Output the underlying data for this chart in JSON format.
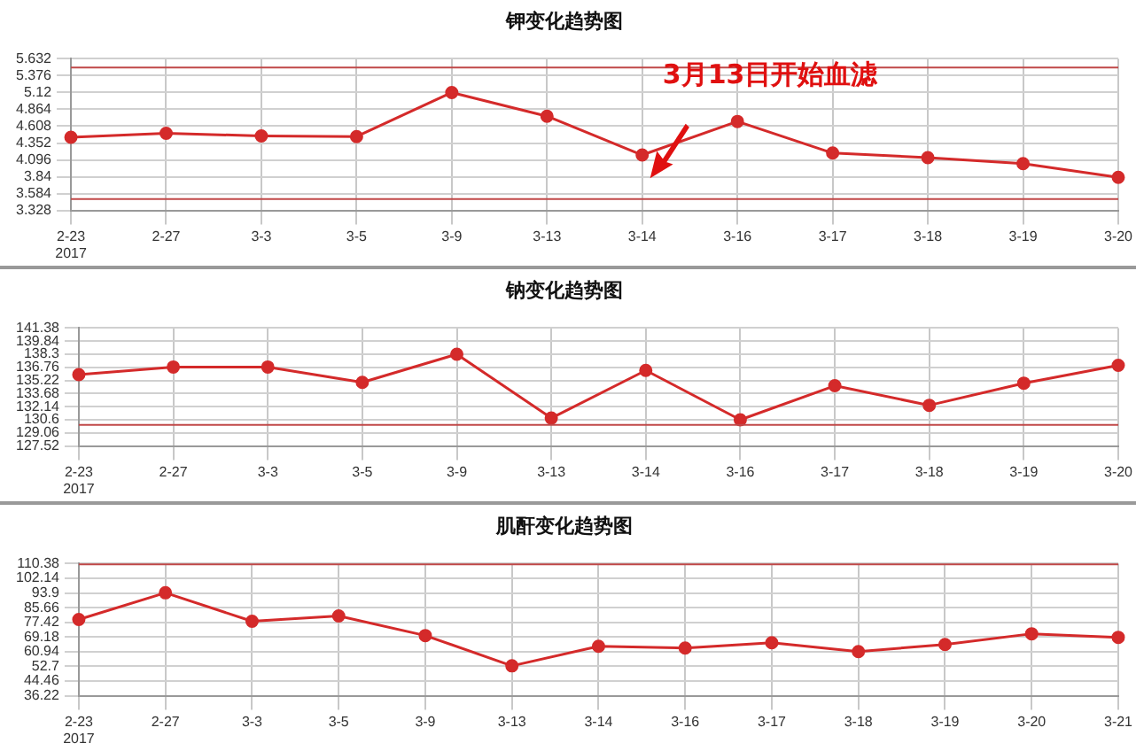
{
  "chart_data": [
    {
      "type": "line",
      "title": "钾变化趋势图",
      "categories": [
        "2-23\n2017",
        "2-27",
        "3-3",
        "3-5",
        "3-9",
        "3-13",
        "3-14",
        "3-16",
        "3-17",
        "3-18",
        "3-19",
        "3-20"
      ],
      "series": [
        {
          "color": "#d42a2a",
          "values": [
            4.44,
            4.5,
            4.46,
            4.45,
            5.12,
            4.76,
            4.17,
            4.68,
            4.2,
            4.13,
            4.04,
            3.83
          ]
        }
      ],
      "ylim": [
        3.328,
        5.632
      ],
      "yticks": [
        3.328,
        3.584,
        3.84,
        4.096,
        4.352,
        4.608,
        4.864,
        5.12,
        5.376,
        5.632
      ],
      "ref_lines": [
        {
          "axis": "y",
          "value": 5.5,
          "color": "#c04848"
        },
        {
          "axis": "y",
          "value": 3.5,
          "color": "#c04848"
        }
      ],
      "annotations": [
        "3月13日开始血滤"
      ],
      "grid": true,
      "legend": false,
      "marker": "circle",
      "line_style": "solid"
    },
    {
      "type": "line",
      "title": "钠变化趋势图",
      "categories": [
        "2-23\n2017",
        "2-27",
        "3-3",
        "3-5",
        "3-9",
        "3-13",
        "3-14",
        "3-16",
        "3-17",
        "3-18",
        "3-19",
        "3-20"
      ],
      "series": [
        {
          "color": "#d42a2a",
          "values": [
            135.9,
            136.8,
            136.8,
            135.0,
            138.3,
            130.8,
            136.4,
            130.6,
            134.6,
            132.3,
            134.9,
            137.0
          ]
        }
      ],
      "ylim": [
        127.52,
        141.38
      ],
      "yticks": [
        127.52,
        129.06,
        130.6,
        132.14,
        133.68,
        135.22,
        136.76,
        138.3,
        139.84,
        141.38
      ],
      "ref_lines": [
        {
          "axis": "y",
          "value": 130,
          "color": "#c04848"
        }
      ],
      "grid": true,
      "legend": false,
      "marker": "circle",
      "line_style": "solid"
    },
    {
      "type": "line",
      "title": "肌酐变化趋势图",
      "categories": [
        "2-23\n2017",
        "2-27",
        "3-3",
        "3-5",
        "3-9",
        "3-13",
        "3-14",
        "3-16",
        "3-17",
        "3-18",
        "3-19",
        "3-20",
        "3-21"
      ],
      "series": [
        {
          "color": "#d42a2a",
          "values": [
            79,
            94,
            78,
            81,
            70,
            53,
            64,
            63,
            66,
            61,
            65,
            71,
            69
          ]
        }
      ],
      "ylim": [
        36.22,
        110.38
      ],
      "yticks": [
        36.22,
        44.46,
        52.7,
        60.94,
        69.18,
        77.42,
        85.66,
        93.9,
        102.14,
        110.38
      ],
      "ref_lines": [
        {
          "axis": "y",
          "value": 110,
          "color": "#c04848"
        }
      ],
      "grid": true,
      "legend": false,
      "marker": "circle",
      "line_style": "solid"
    }
  ]
}
